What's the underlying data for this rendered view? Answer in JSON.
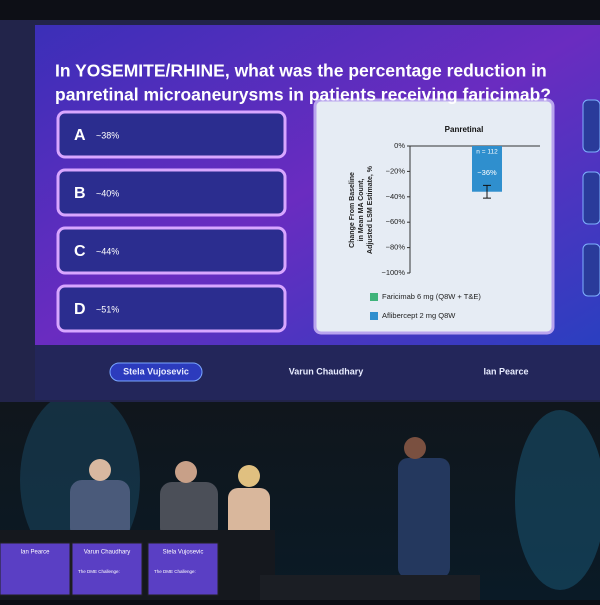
{
  "screen": {
    "question": [
      "In YOSEMITE/RHINE, what was the percentage reduction in",
      "panretinal microaneurysms in patients receiving faricimab?"
    ],
    "options": [
      {
        "letter": "A",
        "text": "~38%"
      },
      {
        "letter": "B",
        "text": "~40%"
      },
      {
        "letter": "C",
        "text": "~44%"
      },
      {
        "letter": "D",
        "text": "~51%"
      }
    ],
    "speakers": [
      "Stela Vujosevic",
      "Varun Chaudhary",
      "Ian Pearce"
    ]
  },
  "chart_data": {
    "type": "bar",
    "title": "Panretinal",
    "ylabel": [
      "Change From Baseline",
      "in Mean MA Count,",
      "Adjusted LSM Estimate, %"
    ],
    "categories": [
      null
    ],
    "values": [
      -36
    ],
    "value_labels": [
      "−36%"
    ],
    "errors": [
      5
    ],
    "annotation": "n = 112",
    "color": "#2f8fce",
    "ylim": [
      -100,
      0
    ],
    "yticks": [
      {
        "value": 0,
        "label": "0%"
      },
      {
        "value": -20,
        "label": "−20%"
      },
      {
        "value": -40,
        "label": "−40%"
      },
      {
        "value": -60,
        "label": "−60%"
      },
      {
        "value": -80,
        "label": "−80%"
      },
      {
        "value": -100,
        "label": "−100%"
      }
    ],
    "legend": [
      {
        "name": "Faricimab 6 mg (Q8W + T&E)",
        "color": "#3fb37a"
      },
      {
        "name": "Aflibercept 2 mg Q8W",
        "color": "#2f8fce"
      }
    ]
  },
  "desk_screens": [
    {
      "name": "Ian Pearce"
    },
    {
      "name": "Varun Chaudhary",
      "title": "The DME Challenge:"
    },
    {
      "name": "Stela Vujosevic",
      "title": "The DME Challenge:"
    }
  ]
}
